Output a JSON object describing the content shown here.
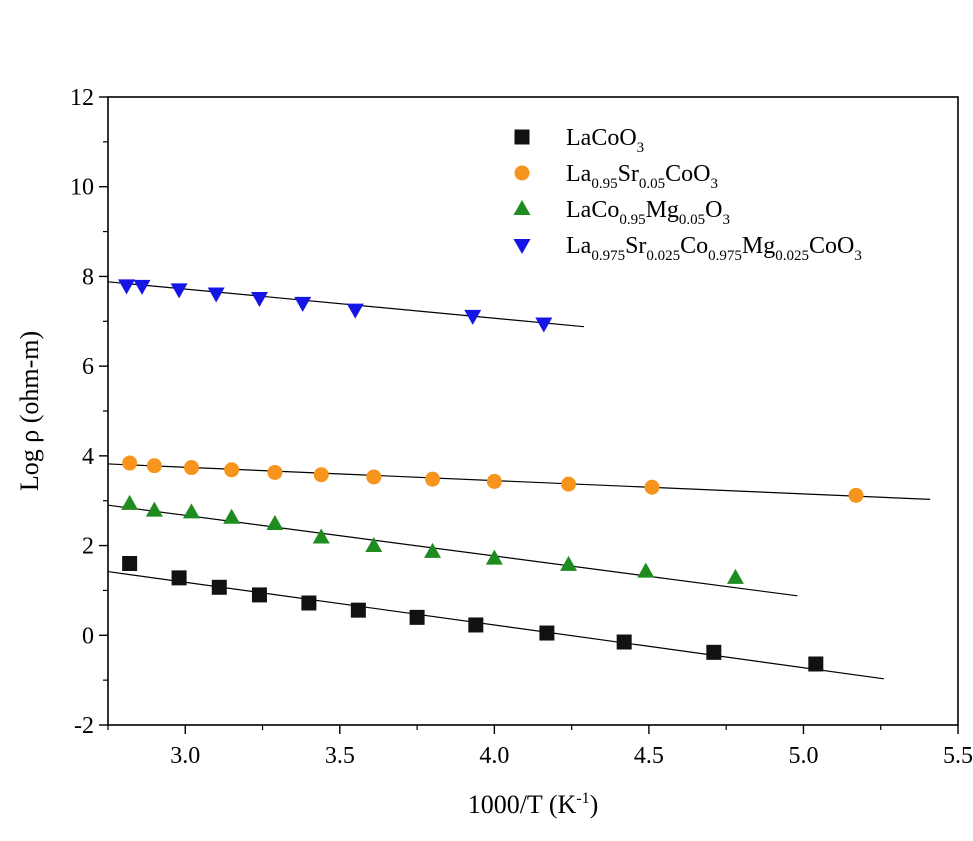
{
  "chart_data": {
    "type": "scatter",
    "title": "",
    "xlabel": {
      "base": "1000/T (K",
      "sup": "-1",
      "tail": ")"
    },
    "ylabel": "Log ρ (ohm-m)",
    "xlim": [
      2.75,
      5.5
    ],
    "ylim": [
      -2,
      12
    ],
    "x_ticks": [
      3.0,
      3.5,
      4.0,
      4.5,
      5.0,
      5.5
    ],
    "x_tick_labels": [
      "3.0",
      "3.5",
      "4.0",
      "4.5",
      "5.0",
      "5.5"
    ],
    "y_ticks": [
      -2,
      0,
      2,
      4,
      6,
      8,
      10,
      12
    ],
    "y_tick_labels": [
      "-2",
      "0",
      "2",
      "4",
      "6",
      "8",
      "10",
      "12"
    ],
    "grid": false,
    "legend_position": "top-right",
    "series": [
      {
        "legend": [
          [
            "LaCoO",
            false
          ],
          [
            "3",
            true
          ]
        ],
        "marker": "square",
        "color": "#111111",
        "points": [
          [
            2.82,
            1.6
          ],
          [
            2.98,
            1.28
          ],
          [
            3.11,
            1.07
          ],
          [
            3.24,
            0.9
          ],
          [
            3.4,
            0.72
          ],
          [
            3.56,
            0.56
          ],
          [
            3.75,
            0.4
          ],
          [
            3.94,
            0.23
          ],
          [
            4.17,
            0.05
          ],
          [
            4.42,
            -0.15
          ],
          [
            4.71,
            -0.38
          ],
          [
            5.04,
            -0.64
          ]
        ],
        "fit": [
          [
            2.75,
            1.42
          ],
          [
            5.26,
            -0.97
          ]
        ]
      },
      {
        "legend": [
          [
            "La",
            false
          ],
          [
            "0.95",
            true
          ],
          [
            "Sr",
            false
          ],
          [
            "0.05",
            true
          ],
          [
            "CoO",
            false
          ],
          [
            "3",
            true
          ]
        ],
        "marker": "circle",
        "color": "#f7941d",
        "points": [
          [
            2.82,
            3.84
          ],
          [
            2.9,
            3.78
          ],
          [
            3.02,
            3.74
          ],
          [
            3.15,
            3.69
          ],
          [
            3.29,
            3.63
          ],
          [
            3.44,
            3.58
          ],
          [
            3.61,
            3.53
          ],
          [
            3.8,
            3.48
          ],
          [
            4.0,
            3.43
          ],
          [
            4.24,
            3.37
          ],
          [
            4.51,
            3.3
          ],
          [
            5.17,
            3.12
          ]
        ],
        "fit": [
          [
            2.75,
            3.82
          ],
          [
            5.41,
            3.03
          ]
        ]
      },
      {
        "legend": [
          [
            "LaCo",
            false
          ],
          [
            "0.95",
            true
          ],
          [
            "Mg",
            false
          ],
          [
            "0.05",
            true
          ],
          [
            "O",
            false
          ],
          [
            "3",
            true
          ]
        ],
        "marker": "triangle-up",
        "color": "#1e8c1e",
        "points": [
          [
            2.82,
            2.93
          ],
          [
            2.9,
            2.78
          ],
          [
            3.02,
            2.74
          ],
          [
            3.15,
            2.62
          ],
          [
            3.29,
            2.48
          ],
          [
            3.44,
            2.18
          ],
          [
            3.61,
            1.99
          ],
          [
            3.8,
            1.86
          ],
          [
            4.0,
            1.71
          ],
          [
            4.24,
            1.57
          ],
          [
            4.49,
            1.42
          ],
          [
            4.78,
            1.28
          ]
        ],
        "fit": [
          [
            2.75,
            2.9
          ],
          [
            4.98,
            0.88
          ]
        ]
      },
      {
        "legend": [
          [
            "La",
            false
          ],
          [
            "0.975",
            true
          ],
          [
            "Sr",
            false
          ],
          [
            "0.025",
            true
          ],
          [
            "Co",
            false
          ],
          [
            "0.975",
            true
          ],
          [
            "Mg",
            false
          ],
          [
            "0.025",
            true
          ],
          [
            "CoO",
            false
          ],
          [
            "3",
            true
          ]
        ],
        "marker": "triangle-down",
        "color": "#1515e6",
        "points": [
          [
            2.81,
            7.8
          ],
          [
            2.86,
            7.79
          ],
          [
            2.98,
            7.71
          ],
          [
            3.1,
            7.62
          ],
          [
            3.24,
            7.52
          ],
          [
            3.38,
            7.41
          ],
          [
            3.55,
            7.26
          ],
          [
            3.93,
            7.12
          ],
          [
            4.16,
            6.95
          ]
        ],
        "fit": [
          [
            2.75,
            7.88
          ],
          [
            4.29,
            6.88
          ]
        ]
      }
    ]
  }
}
